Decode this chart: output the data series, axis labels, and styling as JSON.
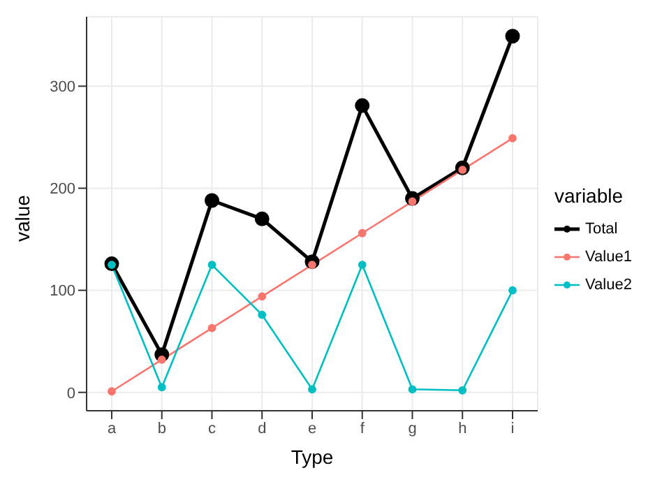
{
  "chart_data": {
    "type": "line",
    "xlabel": "Type",
    "ylabel": "value",
    "legend_title": "variable",
    "legend": "right",
    "grid": true,
    "marker": "circle",
    "line_style": "solid",
    "categories": [
      "a",
      "b",
      "c",
      "d",
      "e",
      "f",
      "g",
      "h",
      "i"
    ],
    "ylim": [
      -18,
      368
    ],
    "yticks": [
      0,
      100,
      200,
      300
    ],
    "series": [
      {
        "name": "Total",
        "color": "#000000",
        "values": [
          126,
          37,
          188,
          170,
          128,
          281,
          190,
          220,
          349
        ]
      },
      {
        "name": "Value1",
        "color": "#f8766d",
        "values": [
          1,
          32,
          63,
          94,
          125,
          156,
          187,
          218,
          249
        ]
      },
      {
        "name": "Value2",
        "color": "#00bfc4",
        "values": [
          125,
          5,
          125,
          76,
          3,
          125,
          3,
          2,
          100
        ]
      }
    ]
  }
}
